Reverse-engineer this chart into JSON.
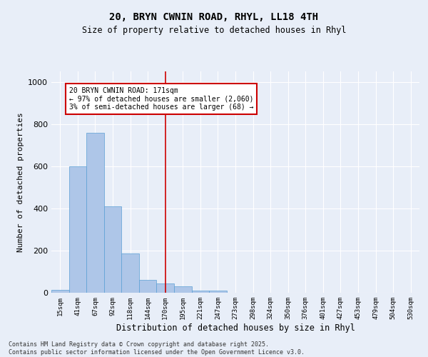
{
  "title": "20, BRYN CWNIN ROAD, RHYL, LL18 4TH",
  "subtitle": "Size of property relative to detached houses in Rhyl",
  "xlabel": "Distribution of detached houses by size in Rhyl",
  "ylabel": "Number of detached properties",
  "categories": [
    "15sqm",
    "41sqm",
    "67sqm",
    "92sqm",
    "118sqm",
    "144sqm",
    "170sqm",
    "195sqm",
    "221sqm",
    "247sqm",
    "273sqm",
    "298sqm",
    "324sqm",
    "350sqm",
    "376sqm",
    "401sqm",
    "427sqm",
    "453sqm",
    "479sqm",
    "504sqm",
    "530sqm"
  ],
  "values": [
    15,
    600,
    760,
    410,
    185,
    60,
    45,
    30,
    10,
    10,
    0,
    0,
    0,
    0,
    0,
    0,
    0,
    0,
    0,
    0,
    0
  ],
  "bar_color": "#aec6e8",
  "bar_edge_color": "#5a9fd4",
  "vline_x_index": 6,
  "vline_color": "#cc0000",
  "background_color": "#e8eef8",
  "grid_color": "#ffffff",
  "annotation_text": "20 BRYN CWNIN ROAD: 171sqm\n← 97% of detached houses are smaller (2,060)\n3% of semi-detached houses are larger (68) →",
  "annotation_box_color": "#ffffff",
  "annotation_box_edge": "#cc0000",
  "ylim": [
    0,
    1050
  ],
  "yticks": [
    0,
    200,
    400,
    600,
    800,
    1000
  ],
  "footer": "Contains HM Land Registry data © Crown copyright and database right 2025.\nContains public sector information licensed under the Open Government Licence v3.0."
}
